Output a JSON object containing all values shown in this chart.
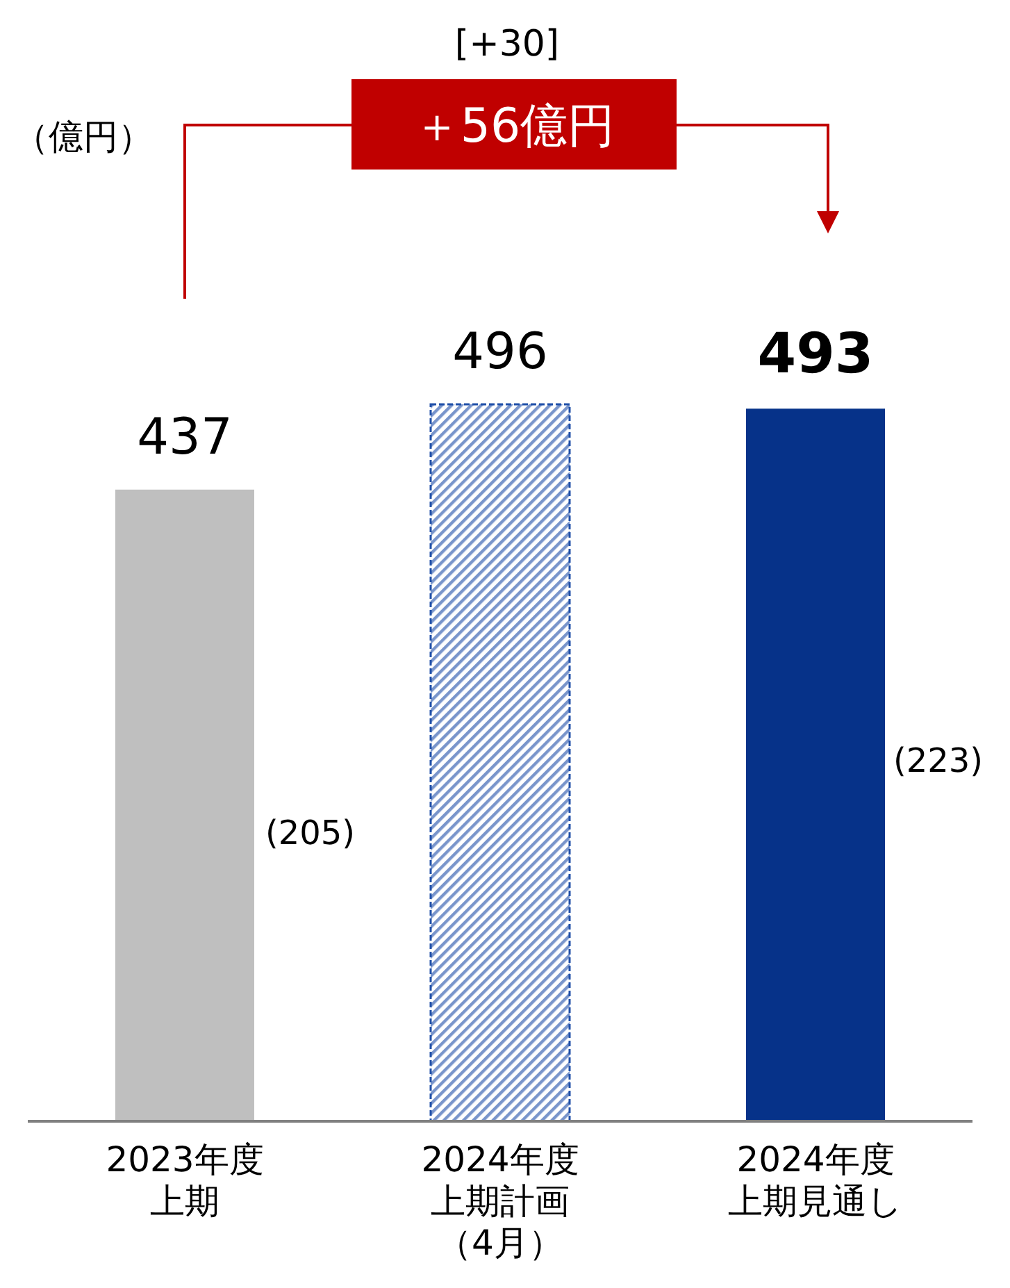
{
  "chart_data": {
    "type": "bar",
    "categories": [
      "2023年度上期",
      "2024年度上期計画（4月）",
      "2024年度上期見通し"
    ],
    "values": [
      437,
      496,
      493
    ],
    "colors": [
      "#bfbfbf",
      "#1f4fa8",
      "#063289"
    ],
    "data_labels": true,
    "annotations": [
      "（億円）",
      "[+30]",
      "＋56億円",
      "(205)",
      "(223)"
    ]
  }
}
